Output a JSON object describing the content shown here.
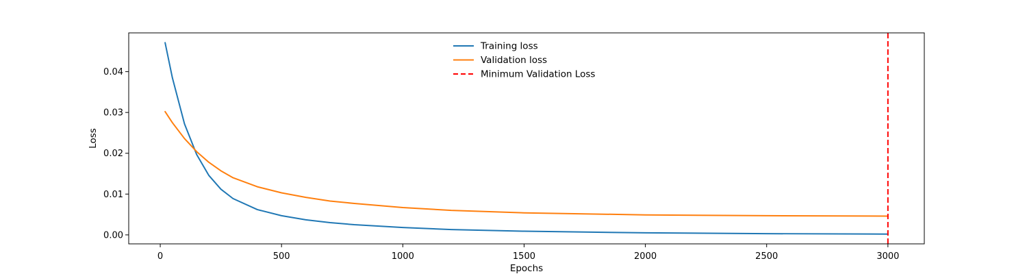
{
  "chart_data": {
    "type": "line",
    "title": "",
    "xlabel": "Epochs",
    "ylabel": "Loss",
    "xlim": [
      -130,
      3150
    ],
    "ylim": [
      -0.0022,
      0.0495
    ],
    "xticks": [
      0,
      500,
      1000,
      1500,
      2000,
      2500,
      3000
    ],
    "yticks": [
      0.0,
      0.01,
      0.02,
      0.03,
      0.04
    ],
    "ytick_labels": [
      "0.00",
      "0.01",
      "0.02",
      "0.03",
      "0.04"
    ],
    "grid": false,
    "legend_position": "upper-center",
    "series": [
      {
        "name": "Training loss",
        "color": "#1f77b4",
        "style": "solid",
        "x": [
          20,
          50,
          100,
          150,
          200,
          250,
          300,
          400,
          500,
          600,
          700,
          800,
          1000,
          1200,
          1500,
          2000,
          2500,
          3000
        ],
        "y": [
          0.0471,
          0.0385,
          0.0272,
          0.0197,
          0.0146,
          0.0112,
          0.0089,
          0.0062,
          0.0047,
          0.0037,
          0.003,
          0.0025,
          0.0018,
          0.0013,
          0.0009,
          0.0005,
          0.0003,
          0.0002
        ]
      },
      {
        "name": "Validation loss",
        "color": "#ff7f0e",
        "style": "solid",
        "x": [
          20,
          50,
          100,
          150,
          200,
          250,
          300,
          400,
          500,
          600,
          700,
          800,
          1000,
          1200,
          1500,
          2000,
          2500,
          3000
        ],
        "y": [
          0.0302,
          0.0275,
          0.0236,
          0.0204,
          0.0178,
          0.0157,
          0.014,
          0.0118,
          0.0103,
          0.0092,
          0.0083,
          0.0077,
          0.0067,
          0.006,
          0.0054,
          0.0049,
          0.0047,
          0.0046
        ]
      },
      {
        "name": "Minimum Validation Loss",
        "color": "#ff0000",
        "style": "dashed",
        "vline_x": 3000
      }
    ]
  }
}
